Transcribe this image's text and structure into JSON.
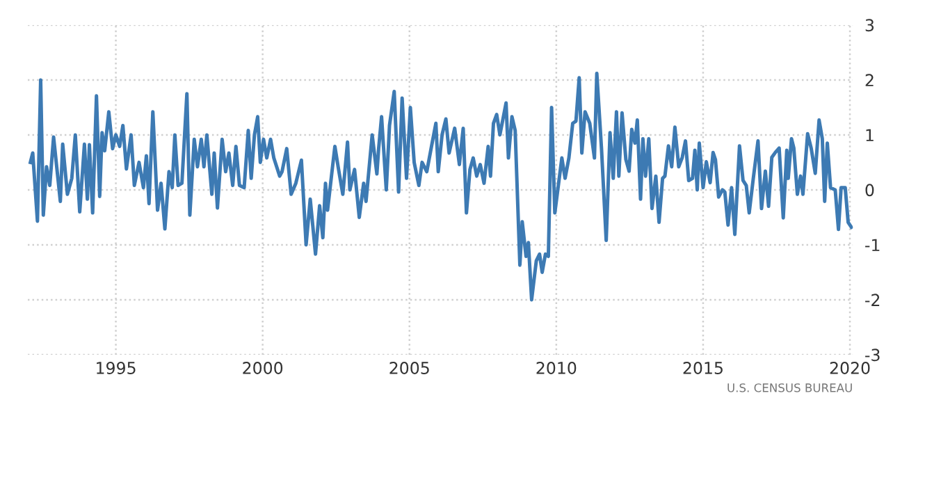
{
  "chart_data": {
    "type": "line",
    "annotations": [
      "U.S. CENSUS BUREAU"
    ],
    "xlim": [
      1992,
      2020.1
    ],
    "xticks": [
      1995,
      2000,
      2005,
      2010,
      2015,
      2020
    ],
    "ylim": [
      -3,
      3
    ],
    "yticks": [
      -3,
      -2,
      -1,
      0,
      1,
      2,
      3
    ],
    "grid": true,
    "marker": "none",
    "line_style": "solid",
    "series": [
      {
        "color": "#3d7ab3",
        "x": [
          1992.09,
          1992.17,
          1992.33,
          1992.44,
          1992.53,
          1992.64,
          1992.75,
          1992.88,
          1993.11,
          1993.19,
          1993.35,
          1993.5,
          1993.62,
          1993.77,
          1993.93,
          1994.03,
          1994.1,
          1994.21,
          1994.34,
          1994.45,
          1994.53,
          1994.62,
          1994.76,
          1994.89,
          1995.0,
          1995.13,
          1995.24,
          1995.36,
          1995.52,
          1995.63,
          1995.79,
          1995.94,
          1996.04,
          1996.13,
          1996.26,
          1996.42,
          1996.54,
          1996.67,
          1996.81,
          1996.92,
          1997.01,
          1997.12,
          1997.25,
          1997.42,
          1997.52,
          1997.67,
          1997.78,
          1997.91,
          1998.0,
          1998.1,
          1998.27,
          1998.35,
          1998.46,
          1998.62,
          1998.74,
          1998.85,
          1998.98,
          1999.09,
          1999.21,
          1999.37,
          1999.51,
          1999.61,
          1999.72,
          1999.83,
          1999.92,
          2000.03,
          2000.14,
          2000.27,
          2000.38,
          2000.58,
          2000.66,
          2000.82,
          2000.97,
          2001.13,
          2001.32,
          2001.48,
          2001.62,
          2001.8,
          2001.94,
          2002.05,
          2002.14,
          2002.21,
          2002.46,
          2002.57,
          2002.73,
          2002.89,
          2002.97,
          2003.13,
          2003.29,
          2003.44,
          2003.52,
          2003.73,
          2003.89,
          2003.95,
          2004.05,
          2004.21,
          2004.32,
          2004.48,
          2004.63,
          2004.75,
          2004.9,
          2005.03,
          2005.16,
          2005.32,
          2005.43,
          2005.59,
          2005.75,
          2005.9,
          2005.98,
          2006.11,
          2006.24,
          2006.35,
          2006.54,
          2006.7,
          2006.83,
          2006.94,
          2007.06,
          2007.17,
          2007.29,
          2007.41,
          2007.54,
          2007.68,
          2007.76,
          2007.86,
          2007.97,
          2008.08,
          2008.29,
          2008.37,
          2008.49,
          2008.6,
          2008.76,
          2008.84,
          2008.97,
          2009.05,
          2009.16,
          2009.32,
          2009.43,
          2009.52,
          2009.63,
          2009.73,
          2009.84,
          2009.95,
          2010.08,
          2010.19,
          2010.3,
          2010.43,
          2010.56,
          2010.67,
          2010.78,
          2010.87,
          2010.98,
          2011.14,
          2011.3,
          2011.38,
          2011.54,
          2011.7,
          2011.83,
          2011.94,
          2012.05,
          2012.13,
          2012.24,
          2012.37,
          2012.48,
          2012.57,
          2012.68,
          2012.76,
          2012.87,
          2012.95,
          2013.04,
          2013.15,
          2013.26,
          2013.39,
          2013.5,
          2013.62,
          2013.7,
          2013.82,
          2013.93,
          2014.04,
          2014.17,
          2014.29,
          2014.4,
          2014.51,
          2014.64,
          2014.72,
          2014.8,
          2014.87,
          2015.0,
          2015.11,
          2015.24,
          2015.34,
          2015.42,
          2015.53,
          2015.66,
          2015.74,
          2015.85,
          2015.97,
          2016.08,
          2016.24,
          2016.36,
          2016.47,
          2016.57,
          2016.71,
          2016.87,
          2016.99,
          2017.12,
          2017.23,
          2017.34,
          2017.46,
          2017.59,
          2017.73,
          2017.85,
          2017.9,
          2018.01,
          2018.09,
          2018.21,
          2018.32,
          2018.4,
          2018.56,
          2018.68,
          2018.82,
          2018.95,
          2019.06,
          2019.14,
          2019.23,
          2019.34,
          2019.5,
          2019.61,
          2019.7,
          2019.84,
          2019.94,
          2020.05
        ],
        "values": [
          0.5,
          0.67,
          -0.57,
          2.0,
          -0.46,
          0.42,
          0.08,
          0.96,
          -0.21,
          0.83,
          -0.08,
          0.21,
          1.0,
          -0.4,
          0.83,
          -0.17,
          0.82,
          -0.42,
          1.71,
          -0.12,
          1.04,
          0.71,
          1.42,
          0.75,
          1.0,
          0.79,
          1.17,
          0.38,
          1.0,
          0.08,
          0.5,
          0.04,
          0.62,
          -0.25,
          1.42,
          -0.37,
          0.12,
          -0.71,
          0.33,
          0.04,
          1.0,
          0.08,
          0.12,
          1.75,
          -0.46,
          0.92,
          0.42,
          0.92,
          0.42,
          1.0,
          -0.08,
          0.67,
          -0.33,
          0.92,
          0.33,
          0.67,
          0.08,
          0.79,
          0.08,
          0.04,
          1.08,
          0.21,
          1.0,
          1.33,
          0.5,
          0.92,
          0.58,
          0.92,
          0.58,
          0.25,
          0.33,
          0.75,
          -0.08,
          0.12,
          0.54,
          -1.0,
          -0.17,
          -1.17,
          -0.29,
          -0.87,
          0.12,
          -0.37,
          0.79,
          0.42,
          -0.08,
          0.87,
          0.0,
          0.37,
          -0.5,
          0.12,
          -0.21,
          1.0,
          0.29,
          0.75,
          1.33,
          0.0,
          1.17,
          1.79,
          -0.04,
          1.67,
          0.21,
          1.5,
          0.5,
          0.08,
          0.5,
          0.33,
          0.79,
          1.21,
          0.33,
          1.0,
          1.29,
          0.67,
          1.12,
          0.46,
          1.12,
          -0.42,
          0.37,
          0.58,
          0.25,
          0.46,
          0.12,
          0.79,
          0.25,
          1.21,
          1.37,
          1.0,
          1.58,
          0.58,
          1.33,
          1.08,
          -1.37,
          -0.58,
          -1.21,
          -0.96,
          -2.0,
          -1.29,
          -1.17,
          -1.5,
          -1.17,
          -1.21,
          1.5,
          -0.42,
          0.12,
          0.58,
          0.21,
          0.58,
          1.21,
          1.25,
          2.04,
          0.67,
          1.42,
          1.21,
          0.58,
          2.12,
          0.75,
          -0.92,
          1.04,
          0.21,
          1.42,
          0.25,
          1.4,
          0.55,
          0.34,
          1.1,
          0.85,
          1.27,
          -0.17,
          0.93,
          0.25,
          0.93,
          -0.34,
          0.25,
          -0.59,
          0.21,
          0.25,
          0.8,
          0.42,
          1.14,
          0.42,
          0.59,
          0.89,
          0.17,
          0.21,
          0.72,
          0.0,
          0.85,
          0.04,
          0.51,
          0.13,
          0.68,
          0.55,
          -0.13,
          0.0,
          -0.04,
          -0.64,
          0.04,
          -0.81,
          0.8,
          0.17,
          0.08,
          -0.42,
          0.21,
          0.89,
          -0.34,
          0.34,
          -0.3,
          0.59,
          0.68,
          0.76,
          -0.51,
          0.72,
          0.21,
          0.93,
          0.76,
          -0.08,
          0.25,
          -0.08,
          1.02,
          0.76,
          0.3,
          1.27,
          0.93,
          -0.21,
          0.85,
          0.04,
          0.0,
          -0.72,
          0.04,
          0.04,
          -0.59,
          -0.68
        ]
      }
    ]
  }
}
